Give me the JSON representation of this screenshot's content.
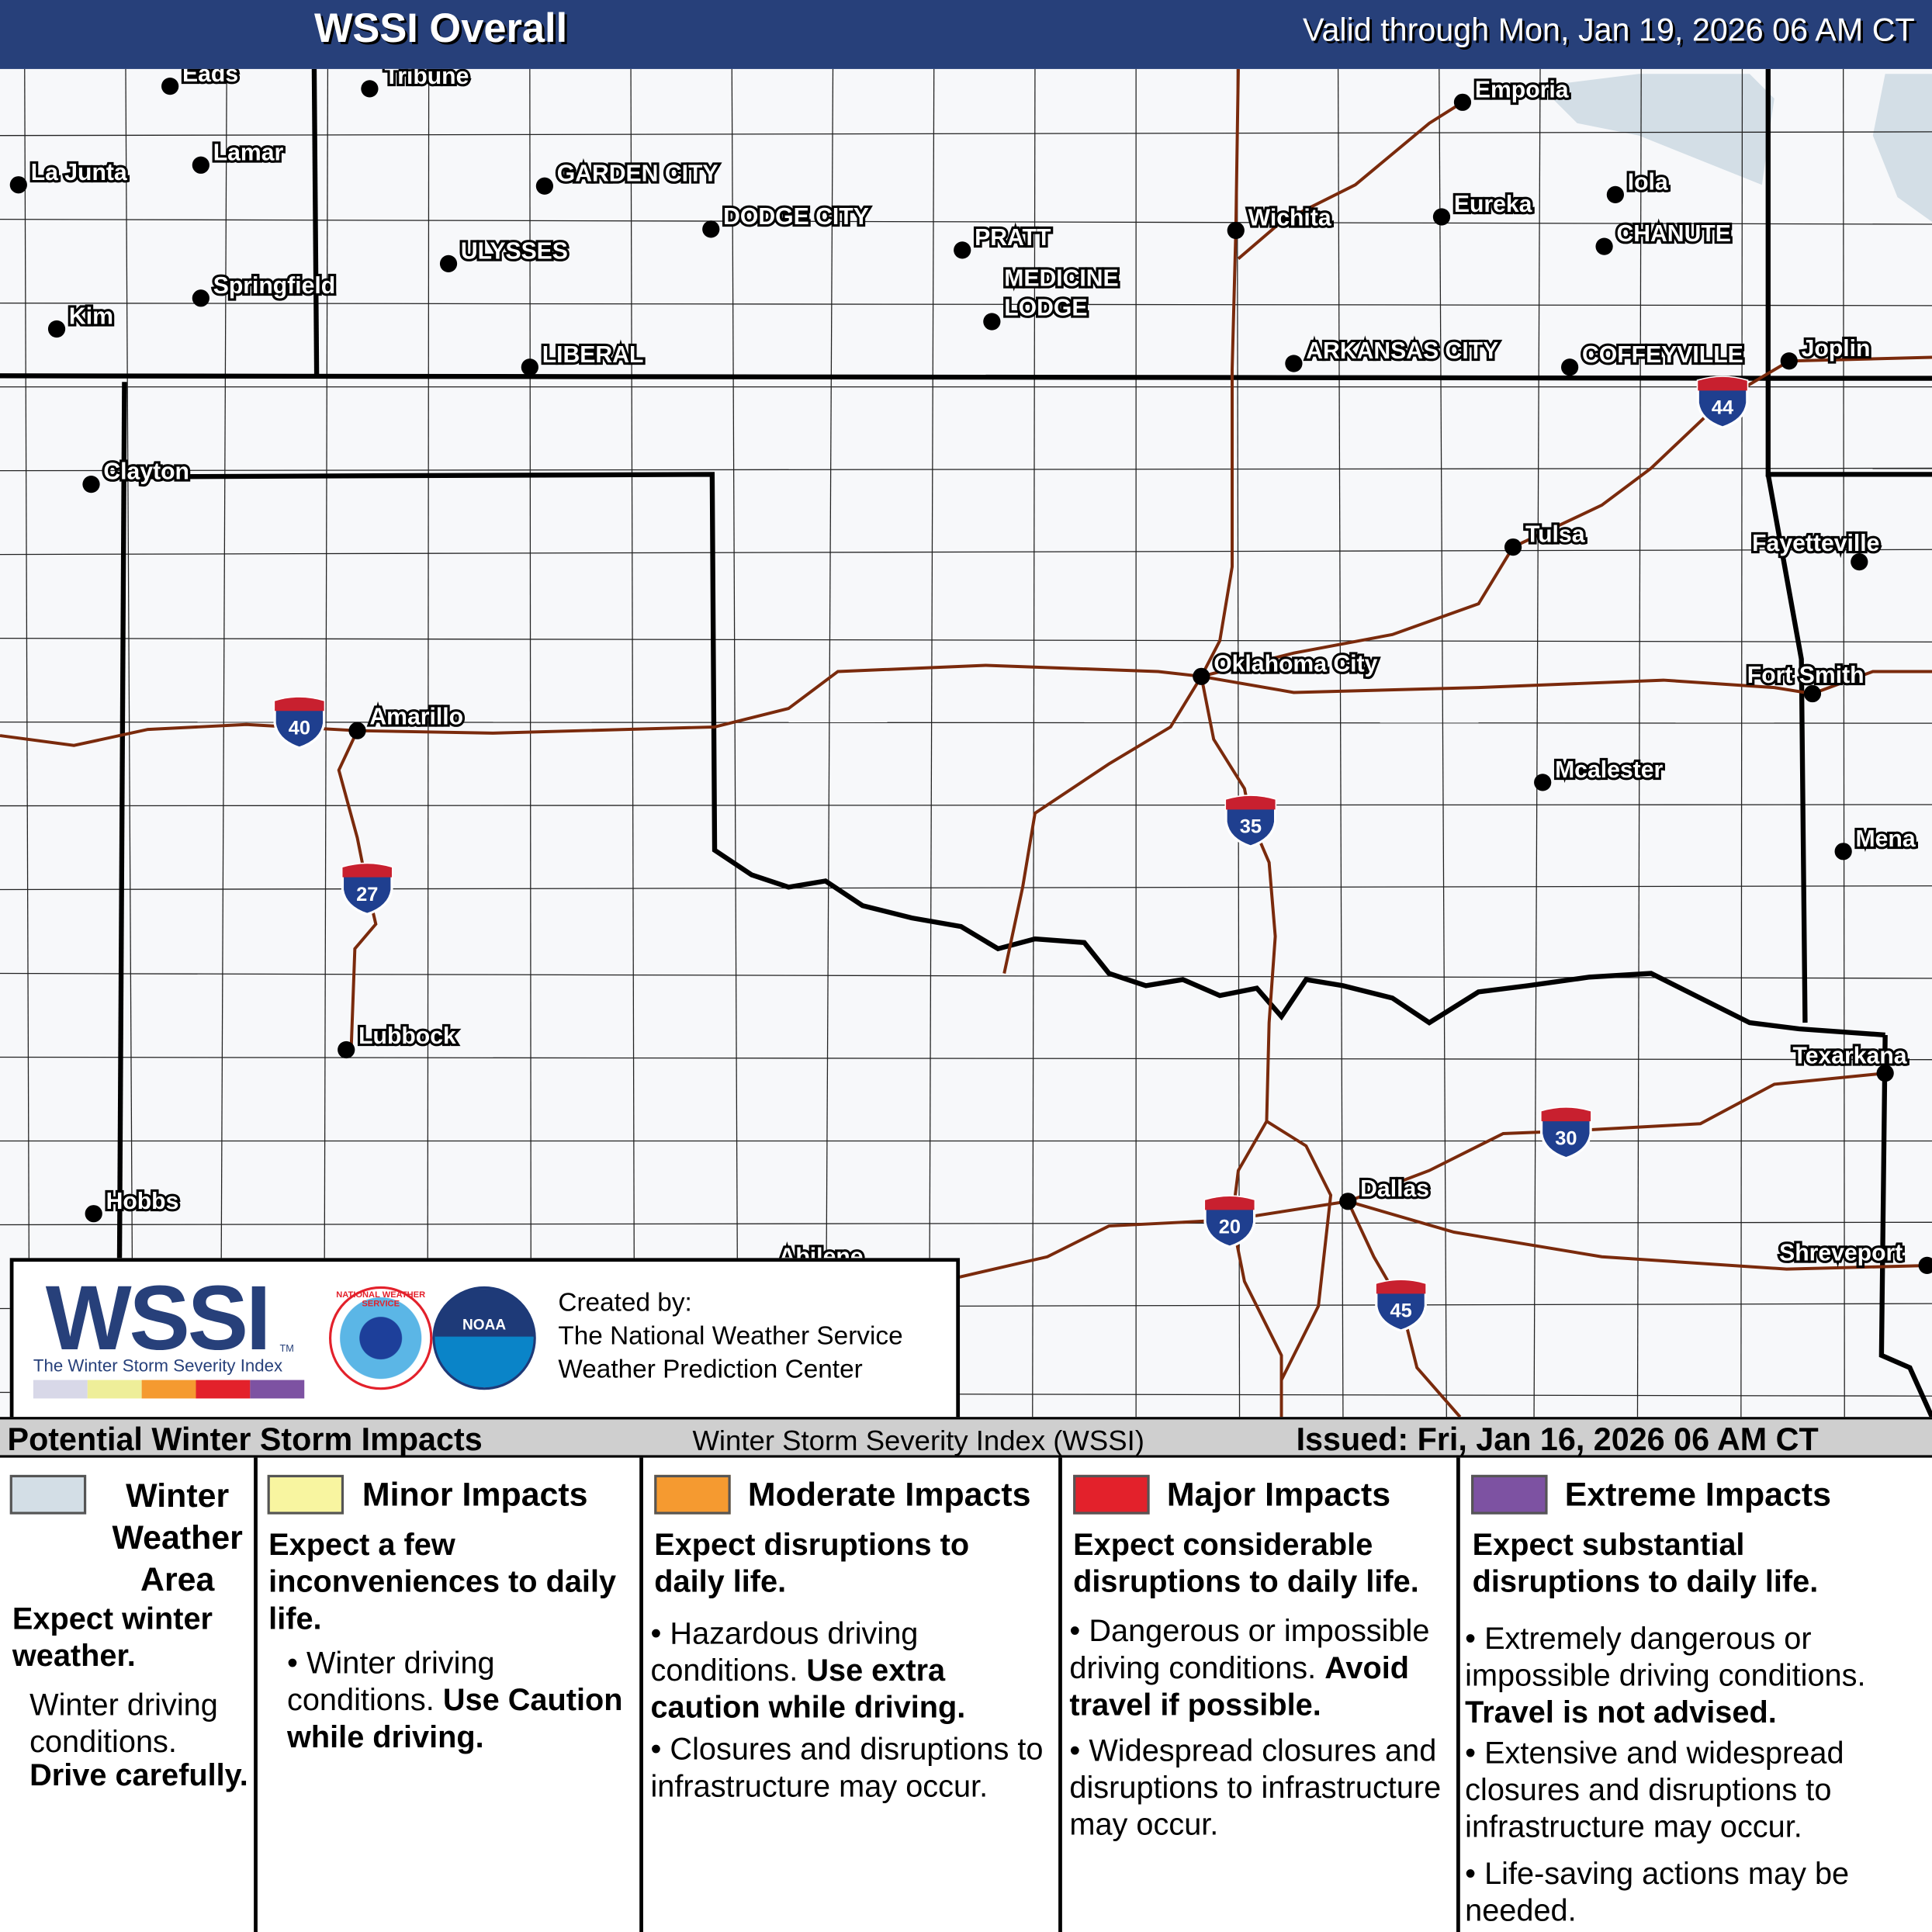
{
  "header": {
    "title": "WSSI Overall",
    "valid": "Valid through Mon, Jan 19, 2026 06 AM CT"
  },
  "map": {
    "cities": [
      "Eads",
      "Tribune",
      "La Junta",
      "Lamar",
      "GARDEN CITY",
      "DODGE CITY",
      "ULYSSES",
      "Springfield",
      "Kim",
      "LIBERAL",
      "PRATT",
      "MEDICINE",
      "LODGE",
      "Wichita",
      "Emporia",
      "Eureka",
      "Iola",
      "CHANUTE",
      "ARKANSAS CITY",
      "COFFEYVILLE",
      "Joplin",
      "Clayton",
      "Tulsa",
      "Fayetteville",
      "Oklahoma City",
      "Fort Smith",
      "Amarillo",
      "Mcalester",
      "Mena",
      "Lubbock",
      "Texarkana",
      "Hobbs",
      "Dallas",
      "Abilene",
      "Shreveport"
    ],
    "interstates": [
      "40",
      "27",
      "35",
      "44",
      "30",
      "20",
      "45"
    ],
    "colors": {
      "road": "#7a2a0c",
      "border": "#000000",
      "county": "#1a1a1a",
      "background": "#f7f8fa",
      "winter_area": "#d3dee6"
    }
  },
  "logo": {
    "wssi": "WSSI",
    "tm": "TM",
    "subtitle": "The Winter Storm Severity Index",
    "nws": "NATIONAL WEATHER SERVICE",
    "noaa": "NOAA",
    "created_by": "Created by:",
    "org1": "The National Weather Service",
    "org2": "Weather Prediction Center",
    "scale_colors": [
      "#d8d8e8",
      "#eeee99",
      "#f59a30",
      "#e3212b",
      "#7d52a2"
    ]
  },
  "legend": {
    "title": "Potential Winter Storm Impacts",
    "index": "Winter Storm Severity Index (WSSI)",
    "issued": "Issued: Fri, Jan 16, 2026 06 AM CT",
    "columns": [
      {
        "color": "#d3dee6",
        "title": "Winter Weather Area",
        "summary": "Expect winter weather.",
        "items": [
          "Winter driving conditions.",
          "Drive carefully."
        ]
      },
      {
        "color": "#f8f5a0",
        "title": "Minor Impacts",
        "summary": "Expect a few inconveniences to daily life.",
        "items": [
          "Winter driving conditions.",
          "Use Caution while driving."
        ]
      },
      {
        "color": "#f59a30",
        "title": "Moderate Impacts",
        "summary": "Expect disruptions to daily life.",
        "items": [
          "Hazardous driving conditions.",
          "Use extra caution while driving.",
          "Closures and disruptions to infrastructure may occur."
        ]
      },
      {
        "color": "#e3212b",
        "title": "Major Impacts",
        "summary": "Expect considerable disruptions to daily life.",
        "items": [
          "Dangerous or impossible driving conditions.",
          "Avoid travel if possible.",
          "Widespread closures and disruptions to infrastructure may occur."
        ]
      },
      {
        "color": "#7d52a2",
        "title": "Extreme Impacts",
        "summary": "Expect substantial disruptions to daily life.",
        "items": [
          "Extremely dangerous or impossible driving conditions.",
          "Travel is not advised.",
          "Extensive and widespread closures and disruptions to infrastructure may occur.",
          "Life-saving actions may be needed."
        ]
      }
    ]
  }
}
